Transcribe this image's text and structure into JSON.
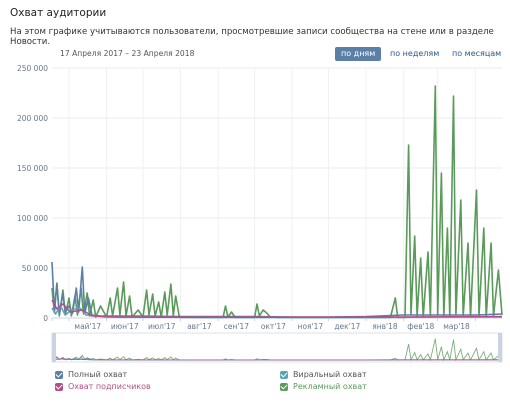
{
  "header": {
    "title": "Охват аудитории",
    "description": "На этом графике учитываются пользователи, просмотревшие записи сообщества на стене или в разделе Новости."
  },
  "date_range": "17 Апреля 2017 – 23 Апреля 2018",
  "period_tabs": [
    {
      "label": "по дням",
      "active": true
    },
    {
      "label": "по неделям",
      "active": false
    },
    {
      "label": "по месяцам",
      "active": false
    }
  ],
  "legend": [
    {
      "label": "Полный охват",
      "color": "#5b7fa6"
    },
    {
      "label": "Виральный охват",
      "color": "#5ba3b6"
    },
    {
      "label": "Охват подписчиков",
      "color": "#b34f86"
    },
    {
      "label": "Рекламный охват",
      "color": "#5a9a5a"
    }
  ],
  "chart_data": {
    "type": "line",
    "title": "",
    "xlabel": "",
    "ylabel": "",
    "x_range": [
      "2017-04-17",
      "2018-04-23"
    ],
    "ylim": [
      0,
      250000
    ],
    "y_ticks": [
      "0",
      "50 000",
      "100 000",
      "150 000",
      "200 000",
      "250 000"
    ],
    "x_tick_labels": [
      "май'17",
      "июн'17",
      "июл'17",
      "авг'17",
      "сен'17",
      "окт'17",
      "ноя'17",
      "дек'17",
      "янв'18",
      "фев'18",
      "мар'18"
    ],
    "grid": true,
    "legend_position": "bottom",
    "series": [
      {
        "name": "Рекламный охват",
        "color": "#5a9a5a",
        "points": [
          [
            "2017-04-17",
            30000
          ],
          [
            "2017-04-19",
            5000
          ],
          [
            "2017-04-21",
            35000
          ],
          [
            "2017-04-23",
            2000
          ],
          [
            "2017-04-26",
            28000
          ],
          [
            "2017-04-28",
            3000
          ],
          [
            "2017-05-01",
            20000
          ],
          [
            "2017-05-03",
            2000
          ],
          [
            "2017-05-06",
            22000
          ],
          [
            "2017-05-08",
            3000
          ],
          [
            "2017-05-11",
            30000
          ],
          [
            "2017-05-13",
            4000
          ],
          [
            "2017-05-16",
            25000
          ],
          [
            "2017-05-18",
            2000
          ],
          [
            "2017-05-21",
            18000
          ],
          [
            "2017-05-23",
            1000
          ],
          [
            "2017-05-27",
            12000
          ],
          [
            "2017-06-01",
            1000
          ],
          [
            "2017-06-04",
            20000
          ],
          [
            "2017-06-06",
            2000
          ],
          [
            "2017-06-10",
            30000
          ],
          [
            "2017-06-12",
            3000
          ],
          [
            "2017-06-15",
            36000
          ],
          [
            "2017-06-17",
            2000
          ],
          [
            "2017-06-20",
            22000
          ],
          [
            "2017-06-22",
            1000
          ],
          [
            "2017-06-27",
            8000
          ],
          [
            "2017-07-01",
            1000
          ],
          [
            "2017-07-04",
            28000
          ],
          [
            "2017-07-06",
            3000
          ],
          [
            "2017-07-09",
            24000
          ],
          [
            "2017-07-11",
            2000
          ],
          [
            "2017-07-14",
            16000
          ],
          [
            "2017-07-16",
            1000
          ],
          [
            "2017-07-19",
            26000
          ],
          [
            "2017-07-21",
            3000
          ],
          [
            "2017-07-24",
            34000
          ],
          [
            "2017-07-26",
            2000
          ],
          [
            "2017-07-28",
            22000
          ],
          [
            "2017-07-31",
            500
          ],
          [
            "2017-08-10",
            500
          ],
          [
            "2017-08-31",
            500
          ],
          [
            "2017-09-05",
            500
          ],
          [
            "2017-09-07",
            12000
          ],
          [
            "2017-09-09",
            1000
          ],
          [
            "2017-09-12",
            6000
          ],
          [
            "2017-09-15",
            500
          ],
          [
            "2017-10-01",
            500
          ],
          [
            "2017-10-03",
            14000
          ],
          [
            "2017-10-05",
            2000
          ],
          [
            "2017-10-08",
            8000
          ],
          [
            "2017-10-11",
            5000
          ],
          [
            "2017-10-14",
            1000
          ],
          [
            "2017-10-20",
            500
          ],
          [
            "2017-11-20",
            500
          ],
          [
            "2017-12-31",
            500
          ],
          [
            "2018-01-21",
            500
          ],
          [
            "2018-01-25",
            20000
          ],
          [
            "2018-01-27",
            500
          ],
          [
            "2018-02-02",
            500
          ],
          [
            "2018-02-05",
            173000
          ],
          [
            "2018-02-07",
            3000
          ],
          [
            "2018-02-10",
            82000
          ],
          [
            "2018-02-12",
            2000
          ],
          [
            "2018-02-15",
            60000
          ],
          [
            "2018-02-17",
            1000
          ],
          [
            "2018-02-21",
            66000
          ],
          [
            "2018-02-23",
            2000
          ],
          [
            "2018-02-27",
            232000
          ],
          [
            "2018-03-01",
            3000
          ],
          [
            "2018-03-04",
            145000
          ],
          [
            "2018-03-06",
            2000
          ],
          [
            "2018-03-09",
            90000
          ],
          [
            "2018-03-11",
            1000
          ],
          [
            "2018-03-14",
            222000
          ],
          [
            "2018-03-16",
            3000
          ],
          [
            "2018-03-20",
            118000
          ],
          [
            "2018-03-22",
            2000
          ],
          [
            "2018-03-26",
            75000
          ],
          [
            "2018-03-28",
            1000
          ],
          [
            "2018-04-02",
            128000
          ],
          [
            "2018-04-04",
            2000
          ],
          [
            "2018-04-08",
            90000
          ],
          [
            "2018-04-10",
            1000
          ],
          [
            "2018-04-14",
            75000
          ],
          [
            "2018-04-16",
            2000
          ],
          [
            "2018-04-20",
            48000
          ],
          [
            "2018-04-23",
            3000
          ]
        ]
      },
      {
        "name": "Полный охват",
        "color": "#5b7fa6",
        "points": [
          [
            "2017-04-17",
            56000
          ],
          [
            "2017-04-19",
            8000
          ],
          [
            "2017-04-21",
            34000
          ],
          [
            "2017-04-23",
            4000
          ],
          [
            "2017-04-26",
            24000
          ],
          [
            "2017-04-28",
            6000
          ],
          [
            "2017-05-01",
            12000
          ],
          [
            "2017-05-04",
            5000
          ],
          [
            "2017-05-07",
            30000
          ],
          [
            "2017-05-09",
            6000
          ],
          [
            "2017-05-12",
            51000
          ],
          [
            "2017-05-14",
            5000
          ],
          [
            "2017-05-17",
            20000
          ],
          [
            "2017-05-20",
            3000
          ],
          [
            "2017-05-27",
            2000
          ],
          [
            "2017-06-10",
            2000
          ],
          [
            "2017-07-01",
            2000
          ],
          [
            "2017-08-01",
            1500
          ],
          [
            "2017-09-01",
            1500
          ],
          [
            "2017-10-01",
            1500
          ],
          [
            "2017-11-01",
            1000
          ],
          [
            "2017-12-01",
            1000
          ],
          [
            "2018-01-01",
            1500
          ],
          [
            "2018-02-01",
            3000
          ],
          [
            "2018-03-01",
            3000
          ],
          [
            "2018-04-01",
            3000
          ],
          [
            "2018-04-23",
            4000
          ]
        ]
      },
      {
        "name": "Виральный охват",
        "color": "#5ba3b6",
        "points": [
          [
            "2017-04-17",
            10000
          ],
          [
            "2017-04-20",
            4000
          ],
          [
            "2017-04-24",
            12000
          ],
          [
            "2017-04-28",
            3000
          ],
          [
            "2017-05-03",
            8000
          ],
          [
            "2017-05-10",
            10000
          ],
          [
            "2017-05-15",
            3000
          ],
          [
            "2017-06-01",
            1000
          ],
          [
            "2017-07-01",
            1000
          ],
          [
            "2017-09-01",
            500
          ],
          [
            "2017-11-01",
            500
          ],
          [
            "2018-01-01",
            500
          ],
          [
            "2018-03-01",
            1000
          ],
          [
            "2018-04-23",
            1000
          ]
        ]
      },
      {
        "name": "Охват подписчиков",
        "color": "#b34f86",
        "points": [
          [
            "2017-04-17",
            18000
          ],
          [
            "2017-04-21",
            9000
          ],
          [
            "2017-04-26",
            14000
          ],
          [
            "2017-05-02",
            6000
          ],
          [
            "2017-05-12",
            8000
          ],
          [
            "2017-05-20",
            2000
          ],
          [
            "2017-06-10",
            1000
          ],
          [
            "2017-08-01",
            800
          ],
          [
            "2017-10-01",
            800
          ],
          [
            "2017-12-01",
            800
          ],
          [
            "2018-02-01",
            1000
          ],
          [
            "2018-04-23",
            1500
          ]
        ]
      }
    ]
  }
}
